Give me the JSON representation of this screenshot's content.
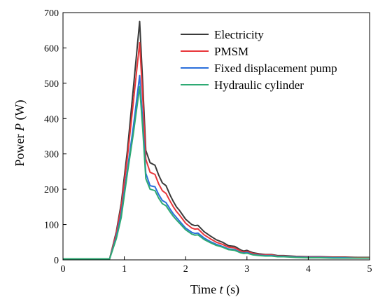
{
  "chart_data": {
    "type": "line",
    "xlabel_prefix": "Time ",
    "xlabel_var": "t",
    "xlabel_suffix": " (s)",
    "ylabel_prefix": "Power ",
    "ylabel_var": "P",
    "ylabel_suffix": " (W)",
    "xlim": [
      0,
      5
    ],
    "ylim": [
      0,
      700
    ],
    "xticks": [
      0,
      1,
      2,
      3,
      4,
      5
    ],
    "yticks": [
      0,
      100,
      200,
      300,
      400,
      500,
      600,
      700
    ],
    "grid": false,
    "legend_position": "top-right",
    "series": [
      {
        "name": "Electricity",
        "color": "#3a3a3a",
        "x": [
          0,
          0.5,
          0.76,
          0.87,
          0.95,
          1.05,
          1.15,
          1.25,
          1.3,
          1.35,
          1.42,
          1.5,
          1.56,
          1.62,
          1.68,
          1.75,
          1.8,
          1.85,
          1.9,
          2.0,
          2.1,
          2.15,
          2.2,
          2.3,
          2.4,
          2.5,
          2.6,
          2.7,
          2.8,
          2.9,
          2.95,
          3.0,
          3.1,
          3.2,
          3.3,
          3.4,
          3.5,
          3.6,
          3.8,
          4.0,
          4.2,
          4.4,
          4.6,
          4.8,
          5.0
        ],
        "y": [
          3,
          3,
          3,
          80,
          160,
          310,
          490,
          675,
          500,
          310,
          275,
          268,
          240,
          218,
          210,
          182,
          165,
          150,
          140,
          115,
          100,
          97,
          98,
          80,
          68,
          57,
          50,
          40,
          38,
          28,
          25,
          27,
          20,
          17,
          15,
          15,
          12,
          12,
          10,
          9,
          9,
          8,
          8,
          7,
          7
        ]
      },
      {
        "name": "PMSM",
        "color": "#e8363a",
        "x": [
          0,
          0.5,
          0.76,
          0.87,
          0.95,
          1.05,
          1.15,
          1.25,
          1.3,
          1.35,
          1.42,
          1.5,
          1.56,
          1.62,
          1.68,
          1.75,
          1.8,
          1.85,
          1.9,
          2.0,
          2.1,
          2.15,
          2.2,
          2.3,
          2.4,
          2.5,
          2.6,
          2.7,
          2.8,
          2.9,
          2.95,
          3.0,
          3.1,
          3.2,
          3.3,
          3.4,
          3.5,
          3.6,
          3.8,
          4.0,
          4.2,
          4.4,
          4.6,
          4.8,
          5.0
        ],
        "y": [
          3,
          3,
          3,
          75,
          150,
          290,
          450,
          615,
          460,
          285,
          248,
          242,
          215,
          196,
          188,
          165,
          150,
          137,
          127,
          104,
          90,
          87,
          88,
          71,
          60,
          50,
          44,
          36,
          34,
          25,
          22,
          24,
          18,
          15,
          14,
          14,
          11,
          11,
          9,
          8,
          8,
          7,
          7,
          6,
          6
        ]
      },
      {
        "name": "Fixed displacement pump",
        "color": "#2a6fdb",
        "x": [
          0,
          0.5,
          0.76,
          0.87,
          0.95,
          1.05,
          1.15,
          1.25,
          1.3,
          1.35,
          1.42,
          1.5,
          1.56,
          1.62,
          1.68,
          1.75,
          1.8,
          1.85,
          1.9,
          2.0,
          2.1,
          2.15,
          2.2,
          2.3,
          2.4,
          2.5,
          2.6,
          2.7,
          2.8,
          2.9,
          2.95,
          3.0,
          3.1,
          3.2,
          3.3,
          3.4,
          3.5,
          3.6,
          3.8,
          4.0,
          4.2,
          4.4,
          4.6,
          4.8,
          5.0
        ],
        "y": [
          3,
          3,
          3,
          65,
          130,
          255,
          380,
          522,
          390,
          245,
          210,
          207,
          185,
          168,
          162,
          143,
          130,
          120,
          110,
          90,
          78,
          75,
          76,
          62,
          52,
          44,
          38,
          31,
          29,
          21,
          19,
          21,
          15,
          13,
          12,
          12,
          10,
          10,
          8,
          7,
          7,
          6,
          6,
          5,
          5
        ]
      },
      {
        "name": "Hydraulic cylinder",
        "color": "#2eaa74",
        "x": [
          0,
          0.5,
          0.76,
          0.87,
          0.95,
          1.05,
          1.15,
          1.25,
          1.3,
          1.35,
          1.42,
          1.5,
          1.56,
          1.62,
          1.68,
          1.75,
          1.8,
          1.85,
          1.9,
          2.0,
          2.1,
          2.15,
          2.2,
          2.3,
          2.4,
          2.5,
          2.6,
          2.7,
          2.8,
          2.9,
          2.95,
          3.0,
          3.1,
          3.2,
          3.3,
          3.4,
          3.5,
          3.6,
          3.8,
          4.0,
          4.2,
          4.4,
          4.6,
          4.8,
          5.0
        ],
        "y": [
          3,
          3,
          3,
          60,
          120,
          245,
          360,
          490,
          370,
          230,
          200,
          196,
          175,
          159,
          153,
          135,
          123,
          113,
          104,
          85,
          73,
          70,
          71,
          58,
          49,
          41,
          36,
          29,
          27,
          20,
          18,
          19,
          14,
          12,
          11,
          11,
          9,
          9,
          7,
          6,
          6,
          5,
          5,
          5,
          5
        ]
      }
    ]
  }
}
